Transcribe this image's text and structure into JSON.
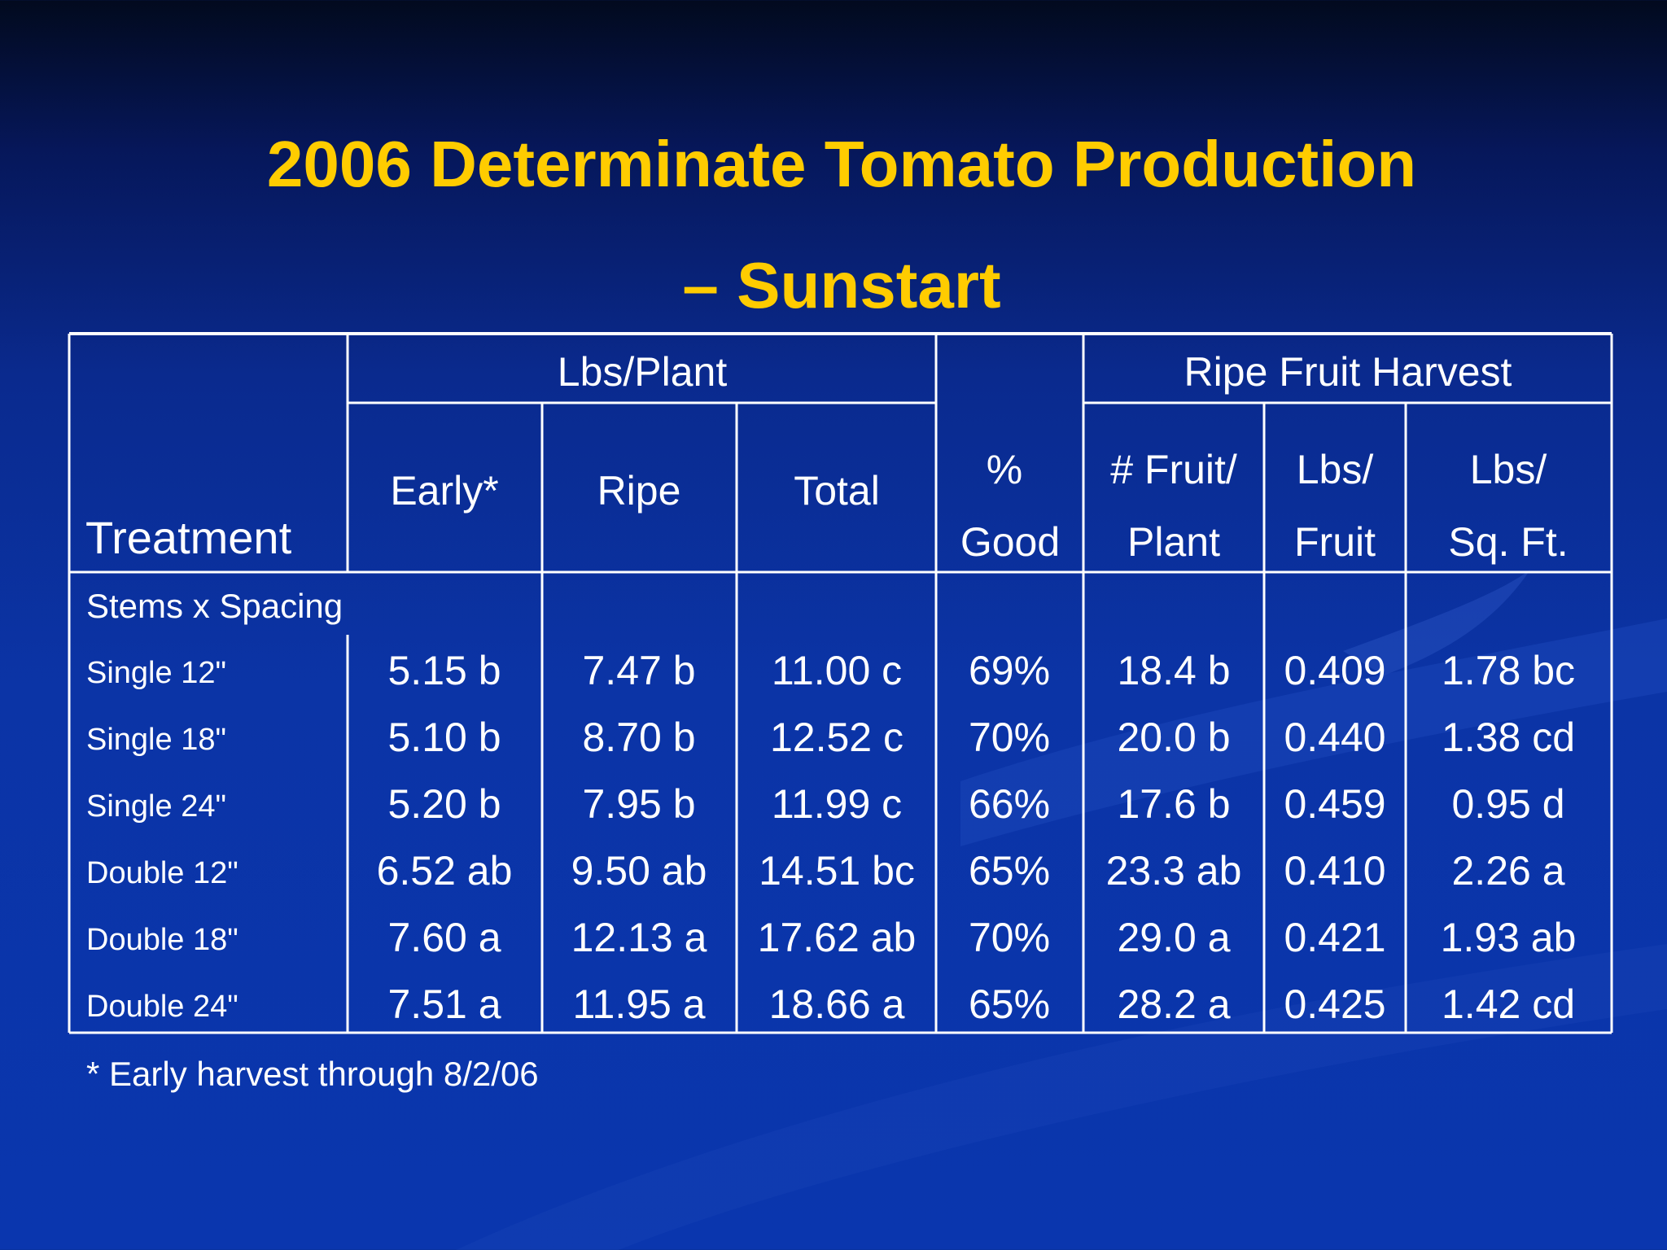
{
  "title_line1": "2006 Determinate Tomato Production",
  "title_line2": "– Sunstart",
  "groups": {
    "lbs_plant": "Lbs/Plant",
    "ripe_fruit_harvest": "Ripe Fruit Harvest"
  },
  "headers": {
    "treatment": "Treatment",
    "early": "Early*",
    "ripe": "Ripe",
    "total": "Total",
    "good_l1": "%",
    "good_l2": "Good",
    "fruit_l1": "# Fruit/",
    "fruit_l2": "Plant",
    "lbsfruit_l1": "Lbs/",
    "lbsfruit_l2": "Fruit",
    "sqft_l1": "Lbs/",
    "sqft_l2": "Sq. Ft."
  },
  "section_label": "Stems x Spacing",
  "rows": [
    {
      "label": "Single 12\"",
      "cells": [
        "5.15 b",
        "7.47 b",
        "11.00 c",
        "69%",
        "18.4 b",
        "0.409",
        "1.78 bc"
      ]
    },
    {
      "label": "Single 18\"",
      "cells": [
        "5.10 b",
        "8.70 b",
        "12.52 c",
        "70%",
        "20.0 b",
        "0.440",
        "1.38 cd"
      ]
    },
    {
      "label": "Single 24\"",
      "cells": [
        "5.20 b",
        "7.95 b",
        "11.99 c",
        "66%",
        "17.6 b",
        "0.459",
        "0.95 d"
      ]
    },
    {
      "label": "Double 12\"",
      "cells": [
        "6.52 ab",
        "9.50 ab",
        "14.51 bc",
        "65%",
        "23.3 ab",
        "0.410",
        "2.26 a"
      ]
    },
    {
      "label": "Double 18\"",
      "cells": [
        "7.60 a",
        "12.13 a",
        "17.62 ab",
        "70%",
        "29.0 a",
        "0.421",
        "1.93 ab"
      ]
    },
    {
      "label": "Double 24\"",
      "cells": [
        "7.51 a",
        "11.95 a",
        "18.66 a",
        "65%",
        "28.2 a",
        "0.425",
        "1.42 cd"
      ]
    }
  ],
  "footnote": "* Early harvest through 8/2/06",
  "colors": {
    "title": "#ffcc00",
    "text": "#ffffff",
    "background": "#0a34a8"
  }
}
